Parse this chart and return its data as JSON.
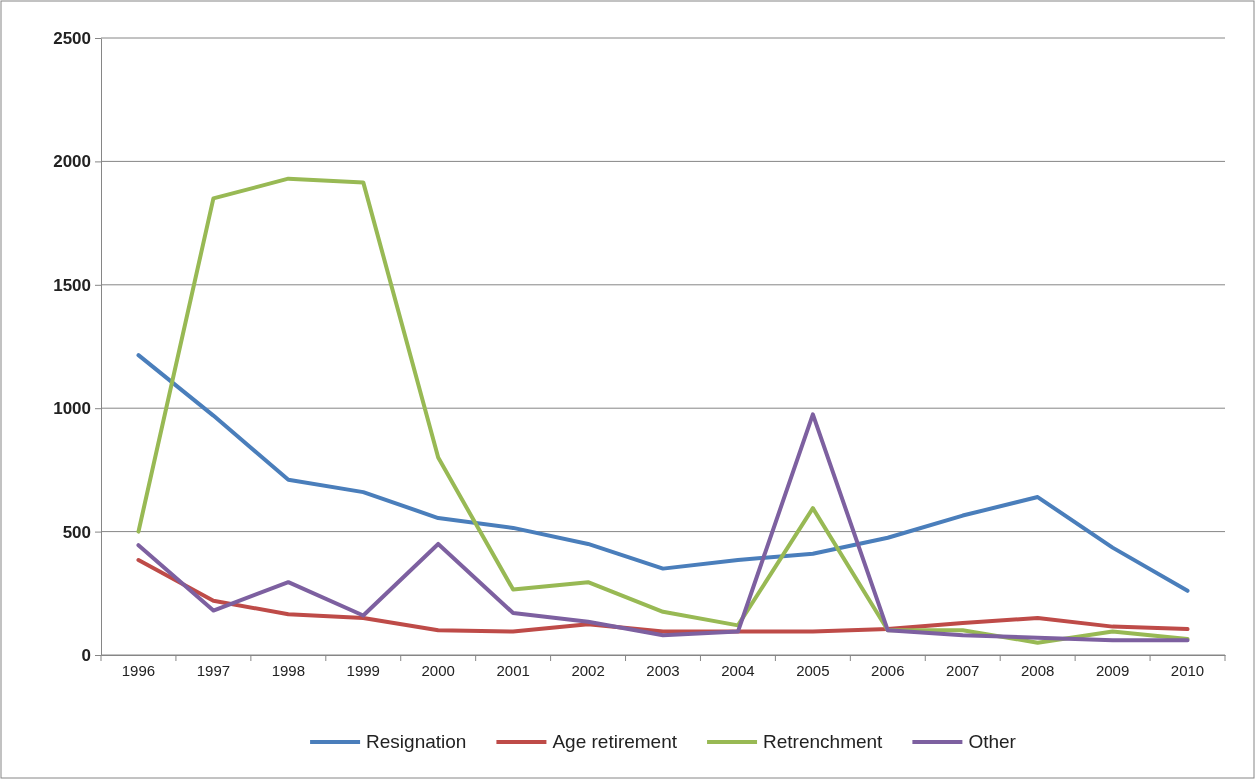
{
  "chart_data": {
    "type": "line",
    "categories": [
      "1996",
      "1997",
      "1998",
      "1999",
      "2000",
      "2001",
      "2002",
      "2003",
      "2004",
      "2005",
      "2006",
      "2007",
      "2008",
      "2009",
      "2010"
    ],
    "series": [
      {
        "name": "Resignation",
        "color": "#4a7ebb",
        "values": [
          1215,
          970,
          710,
          660,
          555,
          515,
          450,
          350,
          385,
          410,
          475,
          565,
          640,
          435,
          260
        ]
      },
      {
        "name": "Age retirement",
        "color": "#be4b48",
        "values": [
          385,
          220,
          165,
          150,
          100,
          95,
          125,
          95,
          95,
          95,
          105,
          130,
          150,
          115,
          105
        ]
      },
      {
        "name": "Retrenchment",
        "color": "#98b954",
        "values": [
          500,
          1850,
          1930,
          1915,
          800,
          265,
          295,
          175,
          120,
          595,
          100,
          100,
          50,
          95,
          65
        ]
      },
      {
        "name": "Other",
        "color": "#7d60a0",
        "values": [
          445,
          180,
          295,
          160,
          450,
          170,
          135,
          80,
          95,
          975,
          100,
          80,
          70,
          60,
          60
        ]
      }
    ],
    "ylim": [
      0,
      2500
    ],
    "yticks": [
      0,
      500,
      1000,
      1500,
      2000,
      2500
    ],
    "grid": "y",
    "legend": "bottom",
    "marker": "none",
    "line_style": "solid"
  }
}
